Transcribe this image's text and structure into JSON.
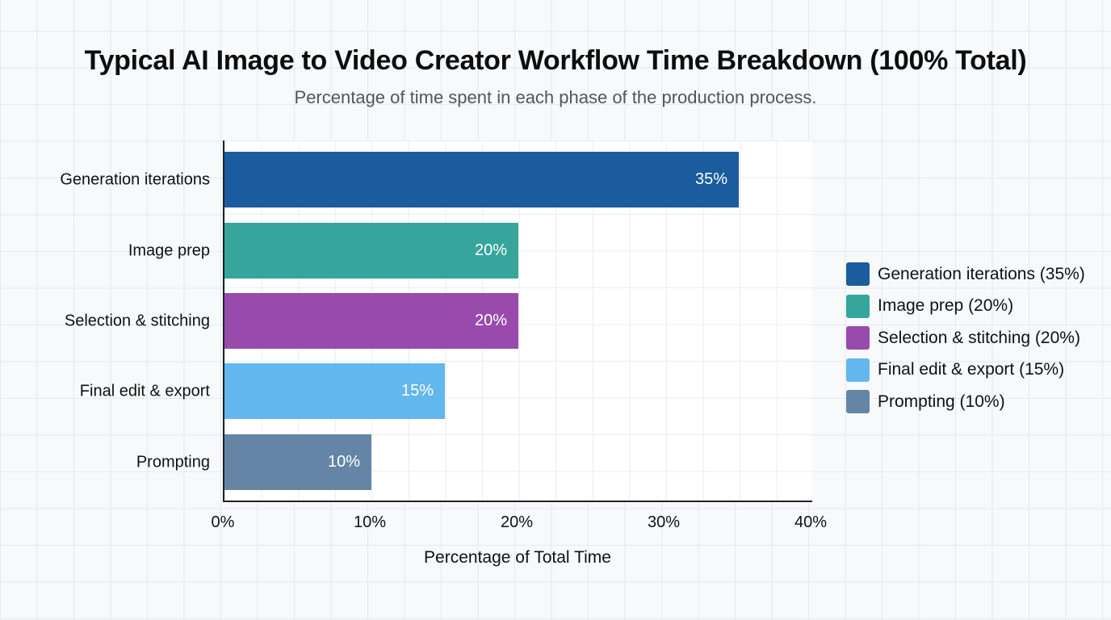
{
  "title": "Typical AI Image to Video Creator Workflow Time Breakdown (100% Total)",
  "subtitle": "Percentage of time spent in each phase of the production process.",
  "chart_data": {
    "type": "bar",
    "orientation": "horizontal",
    "title": "Typical AI Image to Video Creator Workflow Time Breakdown (100% Total)",
    "subtitle": "Percentage of time spent in each phase of the production process.",
    "categories": [
      "Generation iterations",
      "Image prep",
      "Selection & stitching",
      "Final edit & export",
      "Prompting"
    ],
    "values": [
      35,
      20,
      20,
      15,
      10
    ],
    "value_labels": [
      "35%",
      "20%",
      "20%",
      "15%",
      "10%"
    ],
    "colors": [
      "#1a5c9e",
      "#36a59c",
      "#984aad",
      "#62b7ee",
      "#6585a6"
    ],
    "xlabel": "Percentage of Total Time",
    "ylabel": "",
    "xlim": [
      0,
      40
    ],
    "x_ticks": [
      "0%",
      "10%",
      "20%",
      "30%",
      "40%"
    ],
    "grid": true,
    "legend_position": "right",
    "legend": [
      "Generation iterations (35%)",
      "Image prep (20%)",
      "Selection & stitching (20%)",
      "Final edit & export (15%)",
      "Prompting (10%)"
    ]
  }
}
